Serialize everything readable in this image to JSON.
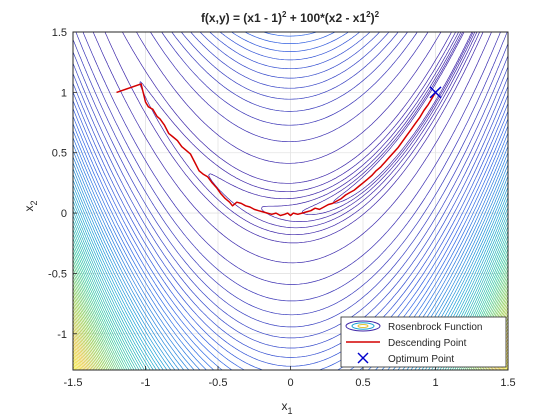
{
  "chart_data": {
    "type": "contour",
    "title": {
      "base": "f(x,y) = (x1 - 1)",
      "sup1": "2",
      "mid": " + 100*(x2 - x1",
      "sup2": "2",
      "close": ")",
      "sup3": "2"
    },
    "xlabel": {
      "base": "x",
      "sub": "1"
    },
    "ylabel": {
      "base": "x",
      "sub": "2"
    },
    "xlim": [
      -1.5,
      1.5
    ],
    "ylim": [
      -1.3,
      1.5
    ],
    "xticks": [
      "-1.5",
      "-1",
      "-0.5",
      "0",
      "0.5",
      "1",
      "1.5"
    ],
    "yticks": [
      "-1",
      "-0.5",
      "0",
      "0.5",
      "1",
      "1.5"
    ],
    "xtick_values": [
      -1.5,
      -1,
      -0.5,
      0,
      0.5,
      1,
      1.5
    ],
    "ytick_values": [
      -1,
      -0.5,
      0,
      0.5,
      1,
      1.5
    ],
    "grid": true,
    "legend_position": "bottom-right",
    "legend": [
      {
        "label": "Rosenbrock Function",
        "kind": "contour"
      },
      {
        "label": "Descending Point",
        "kind": "line",
        "color": "#d40000"
      },
      {
        "label": "Optimum Point",
        "kind": "marker",
        "color": "#0000cc"
      }
    ],
    "colormap": [
      "#3e26a8",
      "#2f64e5",
      "#1aa2d4",
      "#2cc6a0",
      "#8ecb45",
      "#e3c234",
      "#f9fb15"
    ],
    "descent_path": {
      "x": [
        -1.2,
        -1.03,
        -1.0,
        -0.98,
        -0.95,
        -0.92,
        -0.9,
        -0.87,
        -0.84,
        -0.81,
        -0.78,
        -0.75,
        -0.72,
        -0.69,
        -0.66,
        -0.63,
        -0.6,
        -0.57,
        -0.54,
        -0.51,
        -0.48,
        -0.45,
        -0.42,
        -0.4,
        -0.37,
        -0.34,
        -0.31,
        -0.28,
        -0.25,
        -0.22,
        -0.19,
        -0.16,
        -0.13,
        -0.1,
        -0.07,
        -0.04,
        -0.02,
        0.0,
        0.02,
        0.05,
        0.08,
        0.11,
        0.14,
        0.17,
        0.2,
        0.23,
        0.26,
        0.29,
        0.32,
        0.35,
        0.38,
        0.41,
        0.44,
        0.47,
        0.5,
        0.53,
        0.56,
        0.59,
        0.62,
        0.65,
        0.68,
        0.71,
        0.74,
        0.77,
        0.8,
        0.83,
        0.86,
        0.89,
        0.92,
        0.95,
        0.98,
        1.0
      ],
      "y": [
        1.0,
        1.07,
        0.92,
        0.88,
        0.86,
        0.8,
        0.78,
        0.73,
        0.66,
        0.63,
        0.6,
        0.55,
        0.52,
        0.49,
        0.42,
        0.35,
        0.32,
        0.3,
        0.25,
        0.21,
        0.16,
        0.12,
        0.09,
        0.06,
        0.09,
        0.08,
        0.06,
        0.05,
        0.03,
        0.02,
        0.01,
        0.0,
        -0.01,
        0.0,
        -0.02,
        -0.01,
        0.0,
        -0.02,
        0.0,
        -0.01,
        0.0,
        0.01,
        0.02,
        0.04,
        0.03,
        0.05,
        0.07,
        0.08,
        0.1,
        0.12,
        0.15,
        0.17,
        0.19,
        0.22,
        0.25,
        0.28,
        0.31,
        0.35,
        0.38,
        0.42,
        0.46,
        0.5,
        0.54,
        0.59,
        0.64,
        0.69,
        0.74,
        0.79,
        0.85,
        0.9,
        0.96,
        1.0
      ]
    },
    "optimum_point": {
      "x": 1.0,
      "y": 1.0
    }
  }
}
